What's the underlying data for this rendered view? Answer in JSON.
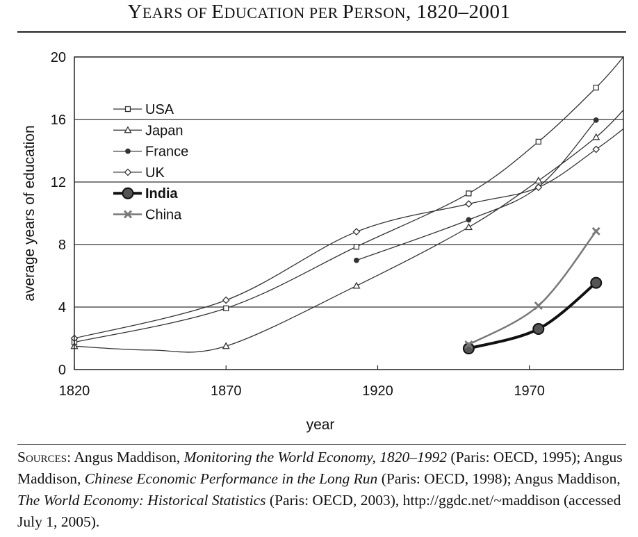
{
  "title": {
    "first_letter": "Y",
    "part1": "EARS OF ",
    "letter2": "E",
    "part2": "DUCATION PER ",
    "letter3": "P",
    "part3": "ERSON",
    "suffix": ", 1820–2001"
  },
  "chart_data": {
    "type": "line",
    "title": "Years of Education per Person, 1820–2001",
    "xlabel": "year",
    "ylabel": "average years of education",
    "xlim": [
      1820,
      2001
    ],
    "ylim": [
      0,
      20
    ],
    "xticks": [
      1820,
      1870,
      1920,
      1970
    ],
    "yticks": [
      0,
      4,
      8,
      12,
      16,
      20
    ],
    "grid": "horizontal",
    "legend_position": "top-left",
    "series": [
      {
        "name": "USA",
        "marker": "square",
        "color": "#333333",
        "width": 1.3,
        "points": [
          [
            1820,
            1.75
          ],
          [
            1870,
            3.92
          ],
          [
            1913,
            7.86
          ],
          [
            1950,
            11.27
          ],
          [
            1973,
            14.58
          ],
          [
            1992,
            18.04
          ]
        ],
        "curve": [
          [
            1820,
            1.75
          ],
          [
            1870,
            3.92
          ],
          [
            1913,
            7.86
          ],
          [
            1950,
            11.27
          ],
          [
            1973,
            14.58
          ],
          [
            1992,
            18.04
          ],
          [
            2001,
            20.0
          ]
        ]
      },
      {
        "name": "Japan",
        "marker": "triangle",
        "color": "#333333",
        "width": 1.3,
        "points": [
          [
            1820,
            1.5
          ],
          [
            1870,
            1.5
          ],
          [
            1913,
            5.36
          ],
          [
            1950,
            9.11
          ],
          [
            1973,
            12.09
          ],
          [
            1992,
            14.87
          ]
        ],
        "curve": [
          [
            1820,
            1.5
          ],
          [
            1845,
            1.25
          ],
          [
            1870,
            1.5
          ],
          [
            1913,
            5.36
          ],
          [
            1950,
            9.11
          ],
          [
            1973,
            12.09
          ],
          [
            1992,
            14.87
          ],
          [
            2001,
            16.6
          ]
        ]
      },
      {
        "name": "France",
        "marker": "circle",
        "color": "#333333",
        "width": 1.3,
        "points": [
          [
            1913,
            6.99
          ],
          [
            1950,
            9.58
          ],
          [
            1973,
            11.69
          ],
          [
            1992,
            15.96
          ]
        ],
        "curve": [
          [
            1913,
            6.99
          ],
          [
            1950,
            9.58
          ],
          [
            1973,
            11.69
          ],
          [
            1992,
            15.96
          ]
        ]
      },
      {
        "name": "UK",
        "marker": "diamond",
        "color": "#333333",
        "width": 1.3,
        "points": [
          [
            1820,
            2.0
          ],
          [
            1870,
            4.44
          ],
          [
            1913,
            8.82
          ],
          [
            1950,
            10.6
          ],
          [
            1973,
            11.66
          ],
          [
            1992,
            14.09
          ]
        ],
        "curve": [
          [
            1820,
            2.0
          ],
          [
            1870,
            4.44
          ],
          [
            1913,
            8.82
          ],
          [
            1950,
            10.6
          ],
          [
            1973,
            11.66
          ],
          [
            1992,
            14.09
          ],
          [
            2001,
            15.4
          ]
        ]
      },
      {
        "name": "India",
        "marker": "big-circle",
        "color": "#111111",
        "width": 4,
        "points": [
          [
            1950,
            1.35
          ],
          [
            1973,
            2.6
          ],
          [
            1992,
            5.55
          ]
        ],
        "curve": [
          [
            1950,
            1.35
          ],
          [
            1973,
            2.6
          ],
          [
            1992,
            5.55
          ]
        ]
      },
      {
        "name": "China",
        "marker": "x",
        "color": "#777777",
        "width": 2.5,
        "points": [
          [
            1950,
            1.6
          ],
          [
            1973,
            4.09
          ],
          [
            1992,
            8.85
          ]
        ],
        "curve": [
          [
            1950,
            1.6
          ],
          [
            1973,
            4.09
          ],
          [
            1992,
            8.85
          ]
        ]
      }
    ]
  },
  "sources": {
    "lead": "Sources:",
    "t1": " Angus Maddison, ",
    "i1": "Monitoring the World Economy, 1820–1992",
    "t2": " (Paris: OECD, 1995); Angus Maddison, ",
    "i2": "Chinese Economic Performance in the Long Run",
    "t3": " (Paris: OECD, 1998); Angus Maddison, ",
    "i3": "The World Economy: Historical Statistics",
    "t4": " (Paris: OECD, 2003), http://ggdc.net/~maddison (accessed July 1, 2005)."
  }
}
